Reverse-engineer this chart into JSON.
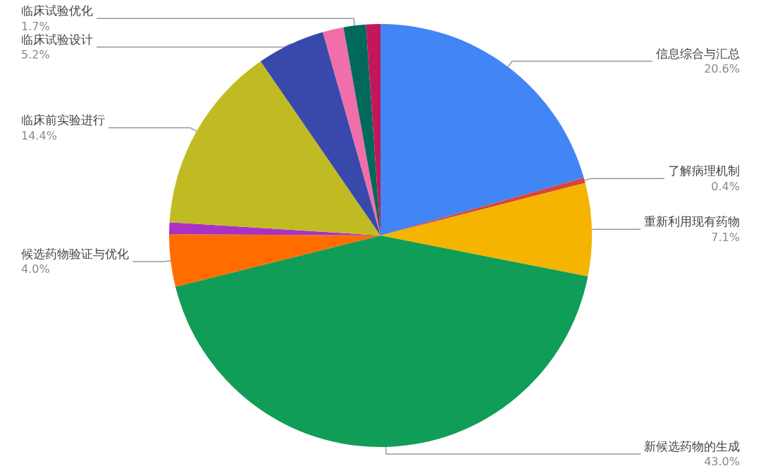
{
  "chart_data": {
    "type": "pie",
    "categories": [
      "信息综合与汇总",
      "了解病理机制",
      "重新利用现有药物",
      "新候选药物的生成",
      "候选药物验证与优化",
      null,
      "临床前实验进行",
      "临床试验设计",
      null,
      "临床试验优化",
      null
    ],
    "values": [
      20.6,
      0.4,
      7.1,
      43.0,
      4.0,
      0.9,
      14.4,
      5.2,
      1.6,
      1.7,
      1.1
    ],
    "value_labels": [
      "20.6%",
      "0.4%",
      "7.1%",
      "43.0%",
      "4.0%",
      null,
      "14.4%",
      "5.2%",
      null,
      "1.7%",
      null
    ],
    "colors": [
      "#4285f4",
      "#db4437",
      "#f4b400",
      "#0f9d58",
      "#ff6d00",
      "#ab30c4",
      "#c0bb22",
      "#3949ab",
      "#f06eaa",
      "#00695c",
      "#c2185b"
    ],
    "legend": false
  }
}
